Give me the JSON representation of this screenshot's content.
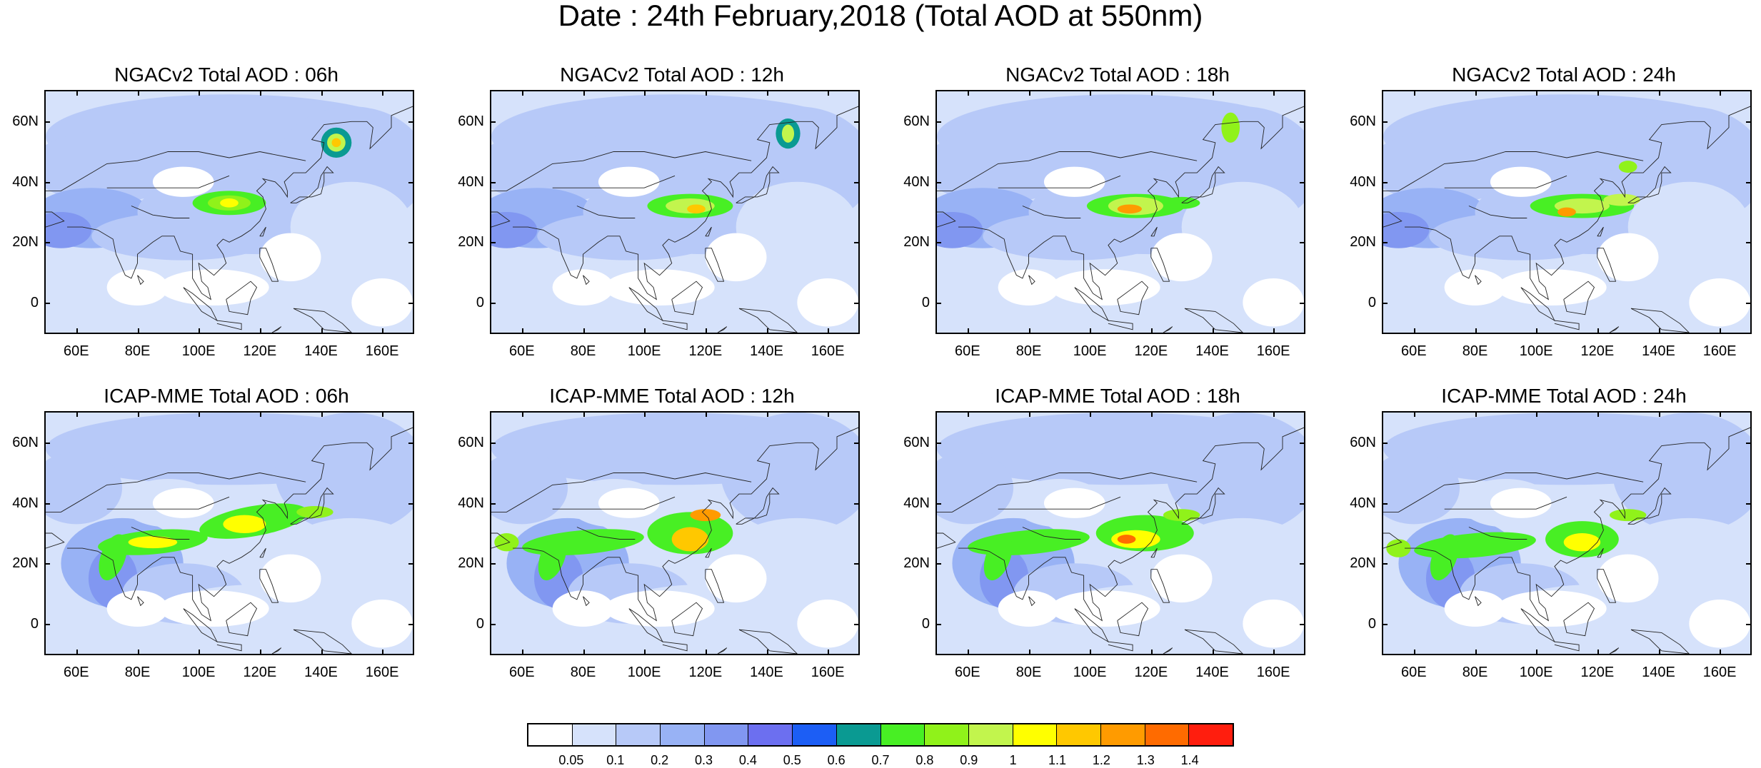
{
  "title": "Date : 24th February,2018 (Total AOD at 550nm)",
  "lat_ticks": [
    "60N",
    "40N",
    "20N",
    "0"
  ],
  "lon_ticks": [
    "60E",
    "80E",
    "100E",
    "120E",
    "140E",
    "160E"
  ],
  "colorbar": {
    "labels": [
      "0.05",
      "0.1",
      "0.2",
      "0.3",
      "0.4",
      "0.5",
      "0.6",
      "0.7",
      "0.8",
      "0.9",
      "1",
      "1.1",
      "1.2",
      "1.3",
      "1.4"
    ],
    "colors": [
      "#ffffff",
      "#d6e2fb",
      "#b7c9f8",
      "#98b2f5",
      "#8197f1",
      "#6c6ff0",
      "#1c5ef5",
      "#0a9a92",
      "#48ef24",
      "#90f21a",
      "#c2f54d",
      "#ffff00",
      "#ffc800",
      "#ff9b00",
      "#ff6b00",
      "#ff1e0e"
    ]
  },
  "panels": [
    {
      "model": "NGAC",
      "title": "NGACv2 Total AOD : 06h",
      "hot": "ngac06"
    },
    {
      "model": "NGAC",
      "title": "NGACv2 Total AOD : 12h",
      "hot": "ngac12"
    },
    {
      "model": "NGAC",
      "title": "NGACv2 Total AOD : 18h",
      "hot": "ngac18"
    },
    {
      "model": "NGAC",
      "title": "NGACv2 Total AOD : 24h",
      "hot": "ngac24"
    },
    {
      "model": "ICAP",
      "title": "ICAP-MME Total AOD : 06h",
      "hot": "icap06"
    },
    {
      "model": "ICAP",
      "title": "ICAP-MME Total AOD : 12h",
      "hot": "icap12"
    },
    {
      "model": "ICAP",
      "title": "ICAP-MME Total AOD : 18h",
      "hot": "icap18"
    },
    {
      "model": "ICAP",
      "title": "ICAP-MME Total AOD : 24h",
      "hot": "icap24"
    }
  ]
}
